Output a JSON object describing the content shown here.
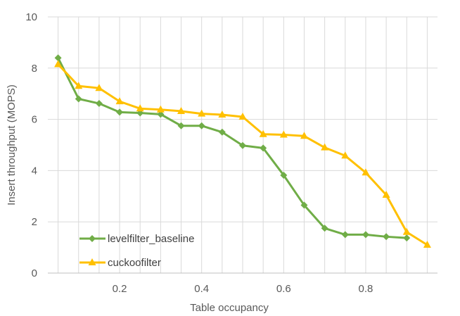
{
  "chart_data": {
    "type": "line",
    "xlabel": "Table occupancy",
    "ylabel": "Insert throughput (MOPS)",
    "xlim": [
      0.025,
      0.975
    ],
    "ylim": [
      0,
      10
    ],
    "x_ticks": [
      "0.2",
      "0.4",
      "0.6",
      "0.8"
    ],
    "y_ticks": [
      "0",
      "2",
      "4",
      "6",
      "8",
      "10"
    ],
    "grid": true,
    "legend_position": "bottom-left inside plot",
    "series": [
      {
        "name": "levelfilter_baseline",
        "color": "#70AD47",
        "marker": "diamond",
        "x": [
          0.05,
          0.1,
          0.15,
          0.2,
          0.25,
          0.3,
          0.35,
          0.4,
          0.45,
          0.5,
          0.55,
          0.6,
          0.65,
          0.7,
          0.75,
          0.8,
          0.85,
          0.9
        ],
        "values": [
          8.4,
          6.8,
          6.62,
          6.28,
          6.25,
          6.2,
          5.75,
          5.75,
          5.5,
          4.98,
          4.88,
          3.82,
          2.65,
          1.75,
          1.5,
          1.5,
          1.42,
          1.37
        ]
      },
      {
        "name": "cuckoofilter",
        "color": "#FFC000",
        "marker": "triangle",
        "x": [
          0.05,
          0.1,
          0.15,
          0.2,
          0.25,
          0.3,
          0.35,
          0.4,
          0.45,
          0.5,
          0.55,
          0.6,
          0.65,
          0.7,
          0.75,
          0.8,
          0.85,
          0.9,
          0.95
        ],
        "values": [
          8.15,
          7.3,
          7.22,
          6.7,
          6.42,
          6.38,
          6.32,
          6.22,
          6.18,
          6.1,
          5.42,
          5.4,
          5.35,
          4.9,
          4.58,
          3.92,
          3.05,
          1.6,
          1.1
        ]
      }
    ]
  }
}
